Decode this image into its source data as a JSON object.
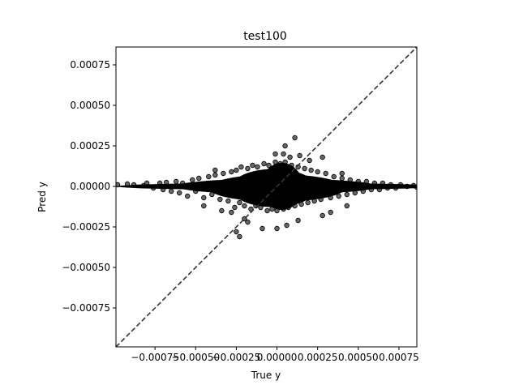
{
  "chart_data": {
    "type": "scatter",
    "title": "test100",
    "xlabel": "True y",
    "ylabel": "Pred y",
    "xlim": [
      -0.00099,
      0.00086
    ],
    "ylim": [
      -0.00099,
      0.00086
    ],
    "x_ticks": [
      -0.00075,
      -0.0005,
      -0.00025,
      0.0,
      0.00025,
      0.0005,
      0.00075
    ],
    "x_tick_labels": [
      "−0.00075",
      "−0.00050",
      "−0.00025",
      "0.00000",
      "0.00025",
      "0.00050",
      "0.00075"
    ],
    "y_ticks": [
      0.00075,
      0.0005,
      0.00025,
      0.0,
      -0.00025,
      -0.0005,
      -0.00075
    ],
    "y_tick_labels": [
      "0.00075",
      "0.00050",
      "0.00025",
      "0.00000",
      "−0.00025",
      "−0.00050",
      "−0.00075"
    ],
    "grid": false,
    "reference_line": {
      "style": "dashed",
      "color": "#333333",
      "from": [
        -0.00099,
        -0.00099
      ],
      "to": [
        0.00086,
        0.00086
      ]
    },
    "point_color": "#000000",
    "points": [
      [
        -0.00098,
        1e-05
      ],
      [
        -0.00092,
        1.5e-05
      ],
      [
        -0.00088,
        1e-05
      ],
      [
        -0.00082,
        5e-06
      ],
      [
        -0.0008,
        2e-05
      ],
      [
        -0.00076,
        -1e-05
      ],
      [
        -0.00072,
        2e-05
      ],
      [
        -0.0007,
        -2e-05
      ],
      [
        -0.00068,
        2.5e-05
      ],
      [
        -0.00065,
        -3e-05
      ],
      [
        -0.00062,
        3e-05
      ],
      [
        -0.0006,
        -4e-05
      ],
      [
        -0.00058,
        2e-05
      ],
      [
        -0.00055,
        -6e-05
      ],
      [
        -0.00052,
        4e-05
      ],
      [
        -0.0005,
        -3e-05
      ],
      [
        -0.00048,
        5e-05
      ],
      [
        -0.00045,
        -7e-05
      ],
      [
        -0.00042,
        6e-05
      ],
      [
        -0.0004,
        -5e-05
      ],
      [
        -0.00038,
        7e-05
      ],
      [
        -0.00035,
        -8e-05
      ],
      [
        -0.00033,
        8e-05
      ],
      [
        -0.0003,
        -9e-05
      ],
      [
        -0.00028,
        9e-05
      ],
      [
        -0.00026,
        -0.00013
      ],
      [
        -0.00025,
        0.0001
      ],
      [
        -0.00023,
        -0.0001
      ],
      [
        -0.00022,
        0.00012
      ],
      [
        -0.0002,
        -0.00012
      ],
      [
        -0.00018,
        0.00011
      ],
      [
        -0.00016,
        -0.00014
      ],
      [
        -0.00015,
        0.00013
      ],
      [
        -0.00013,
        -0.00012
      ],
      [
        -0.00012,
        0.00012
      ],
      [
        -0.0001,
        -0.00013
      ],
      [
        -8e-05,
        0.00014
      ],
      [
        -6e-05,
        -0.00015
      ],
      [
        -5e-05,
        0.00013
      ],
      [
        -3e-05,
        -0.00014
      ],
      [
        -1e-05,
        0.00015
      ],
      [
        0.0,
        -0.00015
      ],
      [
        2e-05,
        0.00014
      ],
      [
        4e-05,
        -0.00014
      ],
      [
        5e-05,
        0.00015
      ],
      [
        7e-05,
        -0.00013
      ],
      [
        9e-05,
        0.00013
      ],
      [
        0.00011,
        -0.00012
      ],
      [
        0.00013,
        0.00012
      ],
      [
        0.00015,
        -0.00011
      ],
      [
        0.00017,
        0.00011
      ],
      [
        0.00019,
        -0.0001
      ],
      [
        0.00021,
        0.0001
      ],
      [
        0.00023,
        -9e-05
      ],
      [
        0.00025,
        9e-05
      ],
      [
        0.00027,
        -8e-05
      ],
      [
        0.0003,
        8e-05
      ],
      [
        0.00033,
        -7e-05
      ],
      [
        0.00035,
        6e-05
      ],
      [
        0.00038,
        -6e-05
      ],
      [
        0.0004,
        5e-05
      ],
      [
        0.00043,
        -5e-05
      ],
      [
        0.00045,
        4e-05
      ],
      [
        0.00048,
        -4e-05
      ],
      [
        0.0005,
        3e-05
      ],
      [
        0.00053,
        -3e-05
      ],
      [
        0.00055,
        3e-05
      ],
      [
        0.00058,
        -2e-05
      ],
      [
        0.0006,
        2e-05
      ],
      [
        0.00063,
        -2e-05
      ],
      [
        0.00065,
        2e-05
      ],
      [
        0.00068,
        -1e-05
      ],
      [
        0.0007,
        1e-05
      ],
      [
        0.00073,
        -1e-05
      ],
      [
        0.00076,
        1e-05
      ],
      [
        0.0008,
        0.0
      ],
      [
        0.00084,
        5e-06
      ],
      [
        0.00086,
        -5e-06
      ],
      [
        5e-05,
        0.00025
      ],
      [
        0.00011,
        0.0003
      ],
      [
        4e-05,
        0.0002
      ],
      [
        8e-05,
        0.00018
      ],
      [
        0.00014,
        0.00019
      ],
      [
        0.0002,
        0.00016
      ],
      [
        0.00028,
        0.00018
      ],
      [
        -1e-05,
        0.0002
      ],
      [
        -0.00023,
        -0.00031
      ],
      [
        -0.00025,
        -0.00028
      ],
      [
        -0.0002,
        -0.0002
      ],
      [
        -0.00018,
        -0.00022
      ],
      [
        -9e-05,
        -0.00026
      ],
      [
        0.0,
        -0.00026
      ],
      [
        6e-05,
        -0.00024
      ],
      [
        0.00013,
        -0.00021
      ],
      [
        -0.00028,
        -0.00016
      ],
      [
        -0.00034,
        -0.00015
      ],
      [
        0.00028,
        -0.00018
      ],
      [
        0.00033,
        -0.00016
      ],
      [
        0.00043,
        -0.00012
      ],
      [
        -0.00045,
        -0.00012
      ],
      [
        0.0004,
        8e-05
      ],
      [
        -0.00038,
        0.0001
      ]
    ]
  }
}
